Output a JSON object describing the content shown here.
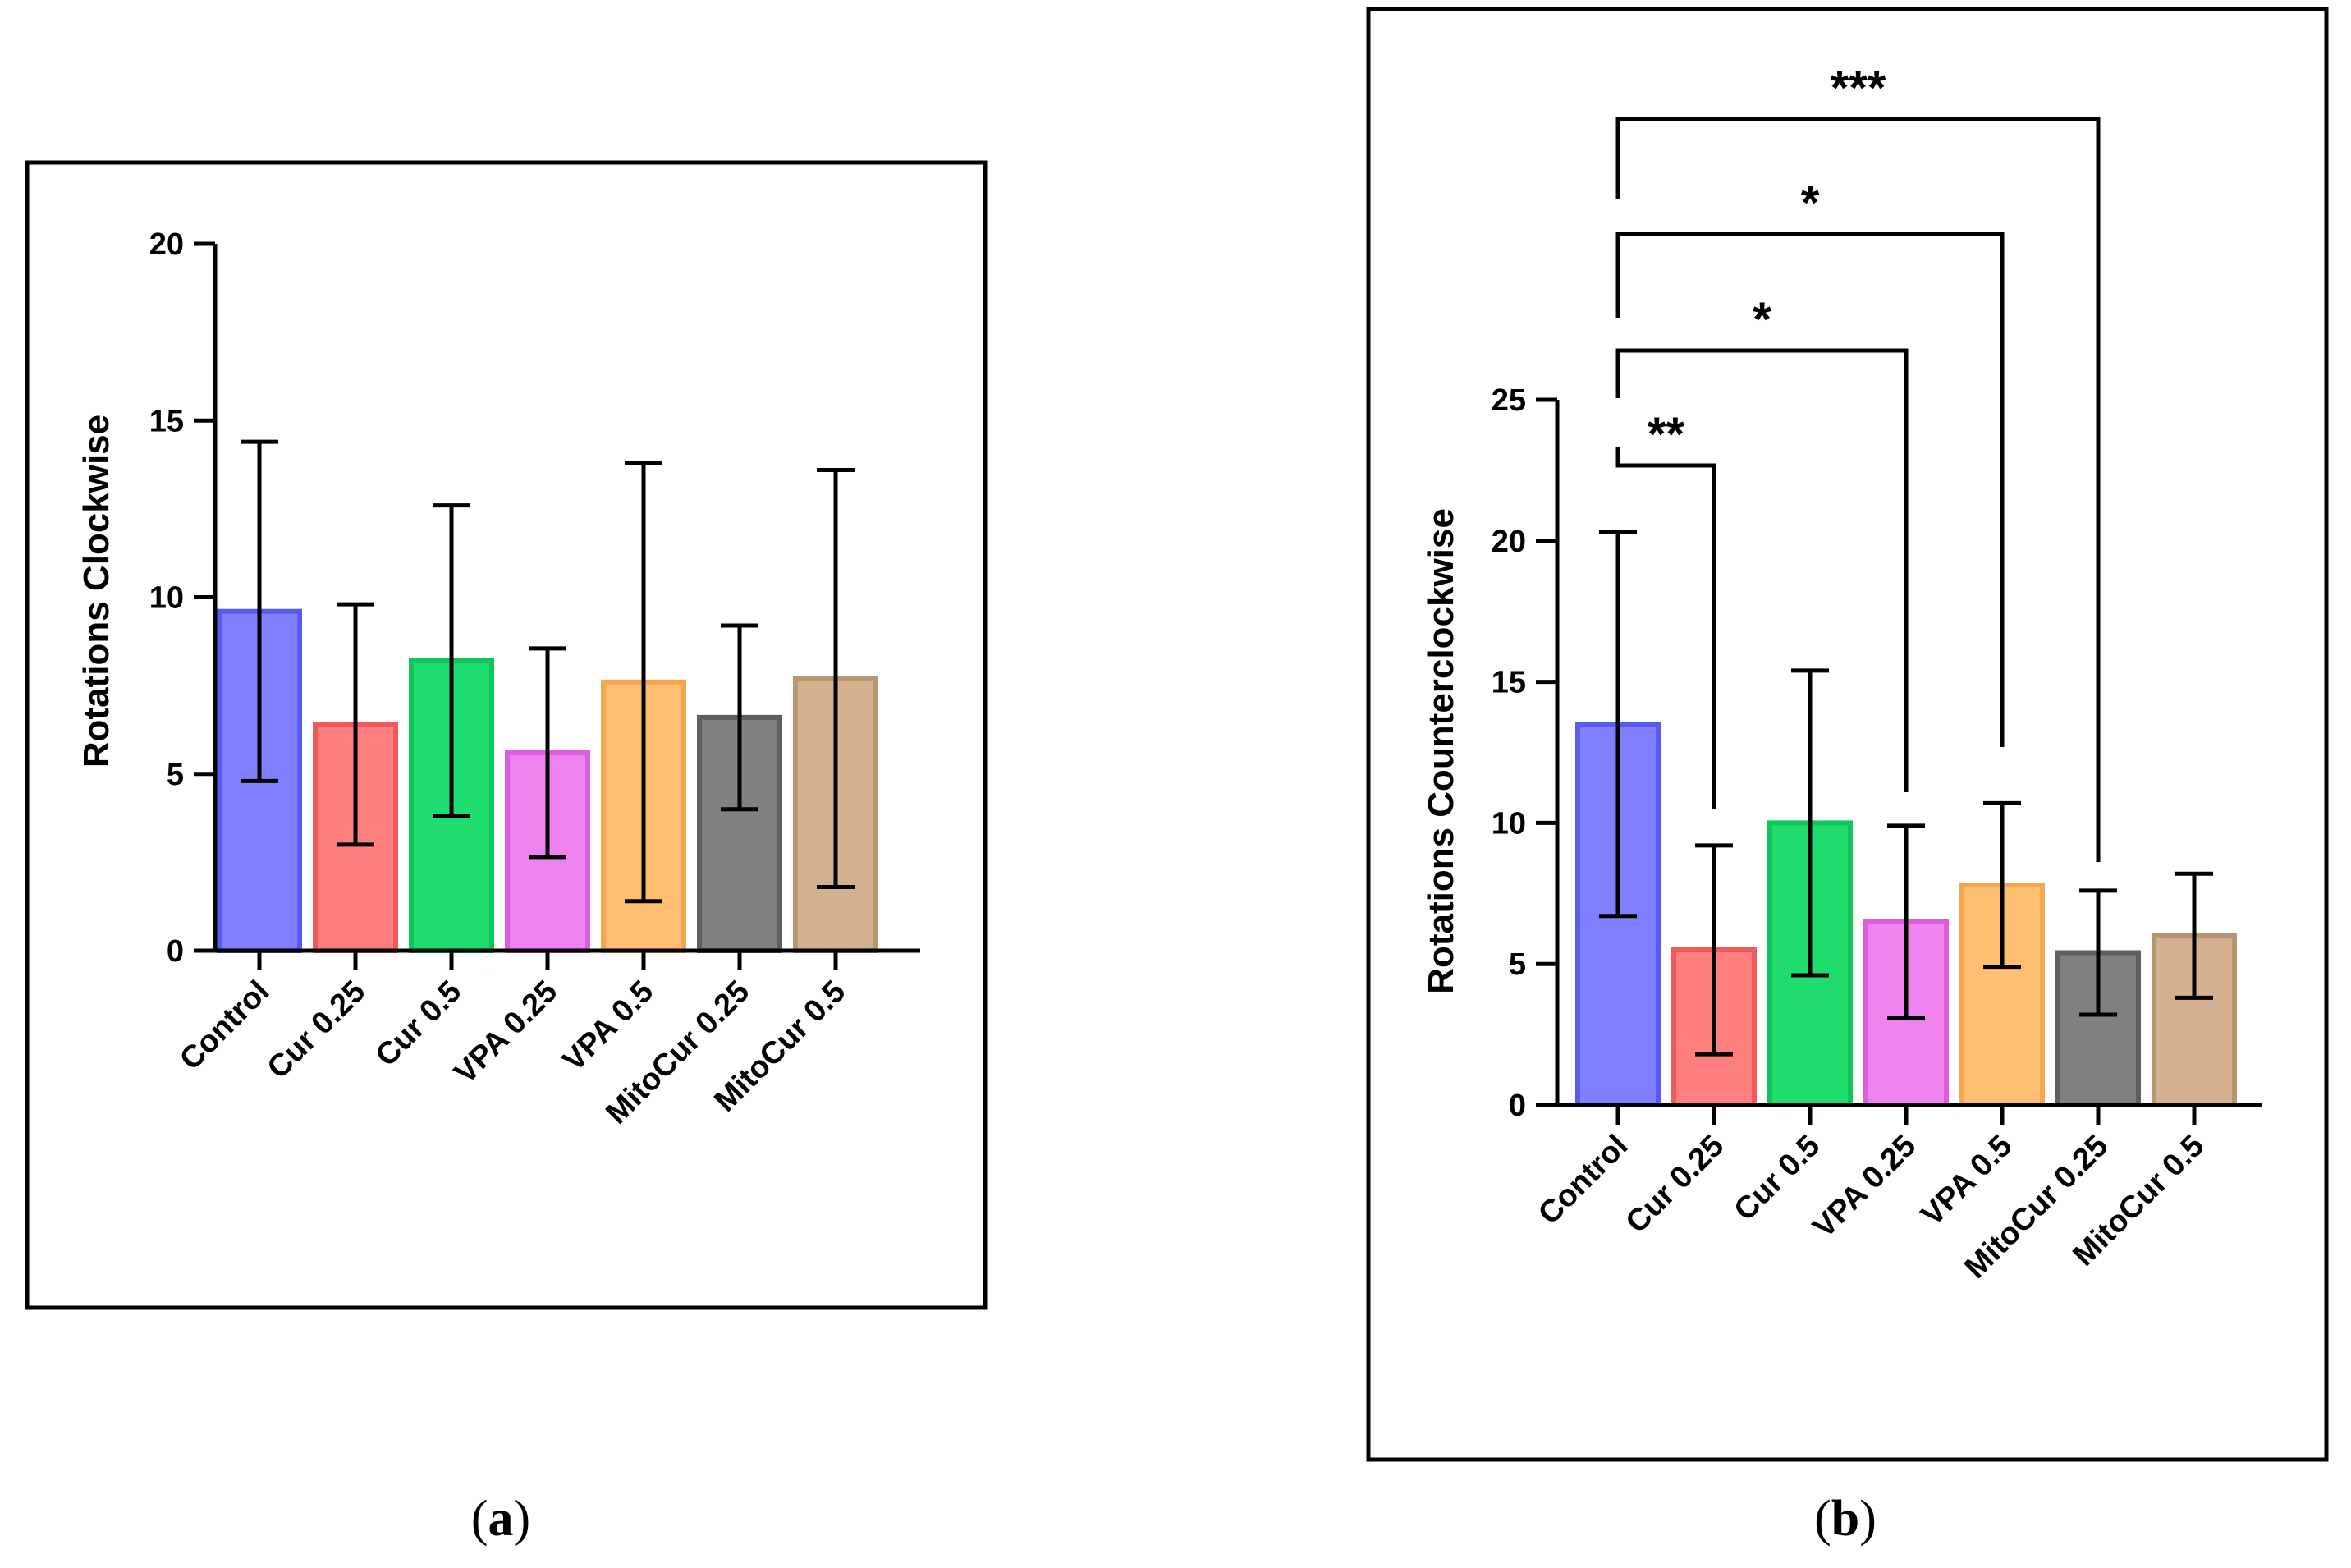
{
  "chart_data": [
    {
      "type": "bar",
      "panel": "a",
      "caption_letter": "a",
      "ylabel": "Rotations Clockwise",
      "ylim": [
        0,
        20
      ],
      "yticks": [
        0,
        5,
        10,
        15,
        20
      ],
      "categories": [
        "Control",
        "Cur 0.25",
        "Cur 0.5",
        "VPA 0.25",
        "VPA 0.5",
        "MitoCur 0.25",
        "MitoCur 0.5"
      ],
      "values": [
        9.6,
        6.4,
        8.2,
        5.6,
        7.6,
        6.6,
        7.7
      ],
      "errors": [
        4.8,
        3.4,
        4.4,
        2.95,
        6.2,
        2.6,
        5.9
      ],
      "colors": [
        "#8080ff",
        "#ff7f7f",
        "#1edc6e",
        "#ee82ee",
        "#ffbf73",
        "#808080",
        "#d2b090"
      ],
      "edge_colors": [
        "#5a5af0",
        "#f05a5a",
        "#10c55a",
        "#dd5edd",
        "#f5a74d",
        "#5f5f5f",
        "#b8966f"
      ],
      "significance": []
    },
    {
      "type": "bar",
      "panel": "b",
      "caption_letter": "b",
      "ylabel": "Rotations Counterclockwise",
      "ylim": [
        0,
        25
      ],
      "yticks": [
        0,
        5,
        10,
        15,
        20,
        25
      ],
      "categories": [
        "Control",
        "Cur 0.25",
        "Cur 0.5",
        "VPA 0.25",
        "VPA 0.5",
        "MitoCur 0.25",
        "MitoCur 0.5"
      ],
      "values": [
        13.5,
        5.5,
        10.0,
        6.5,
        7.8,
        5.4,
        6.0
      ],
      "errors": [
        6.8,
        3.7,
        5.4,
        3.4,
        2.9,
        2.2,
        2.2
      ],
      "colors": [
        "#8080ff",
        "#ff7f7f",
        "#1edc6e",
        "#ee82ee",
        "#ffbf73",
        "#808080",
        "#d2b090"
      ],
      "edge_colors": [
        "#5a5af0",
        "#f05a5a",
        "#10c55a",
        "#dd5edd",
        "#f5a74d",
        "#5f5f5f",
        "#b8966f"
      ],
      "significance": [
        {
          "from": "Control",
          "to": "Cur 0.25",
          "label": "**"
        },
        {
          "from": "Control",
          "to": "VPA 0.25",
          "label": "*"
        },
        {
          "from": "Control",
          "to": "VPA 0.5",
          "label": "*"
        },
        {
          "from": "Control",
          "to": "MitoCur 0.25",
          "label": "***"
        }
      ]
    }
  ]
}
